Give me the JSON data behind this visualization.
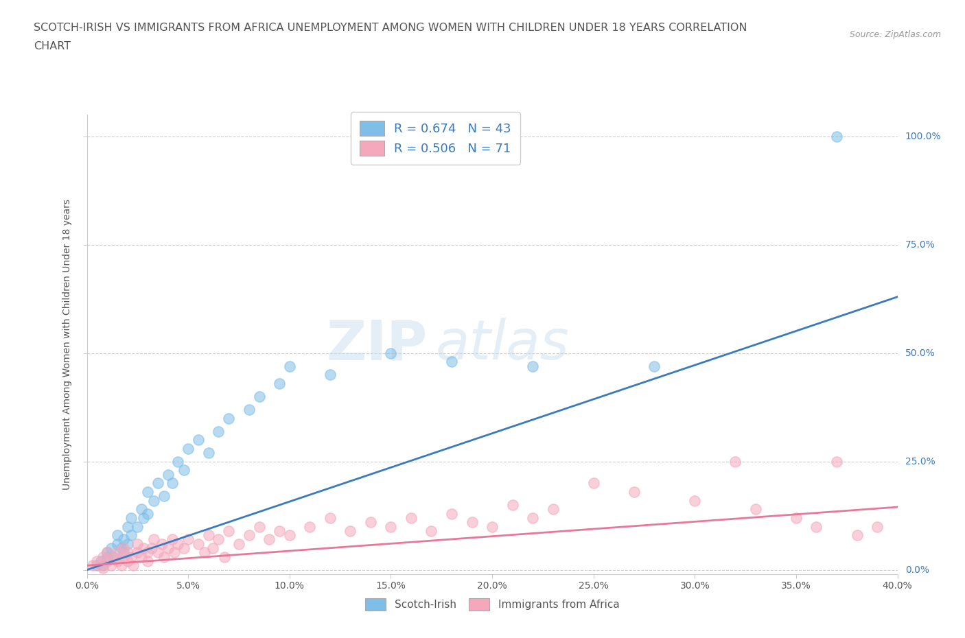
{
  "title_line1": "SCOTCH-IRISH VS IMMIGRANTS FROM AFRICA UNEMPLOYMENT AMONG WOMEN WITH CHILDREN UNDER 18 YEARS CORRELATION",
  "title_line2": "CHART",
  "source_text": "Source: ZipAtlas.com",
  "xlim": [
    0.0,
    0.4
  ],
  "ylim": [
    -0.01,
    1.05
  ],
  "ylabel": "Unemployment Among Women with Children Under 18 years",
  "watermark_zip": "ZIP",
  "watermark_atlas": "atlas",
  "blue_R": 0.674,
  "blue_N": 43,
  "pink_R": 0.506,
  "pink_N": 71,
  "blue_color": "#7fbee8",
  "pink_color": "#f5a8bc",
  "blue_line_color": "#3a7abf",
  "pink_line_color": "#e8789a",
  "legend_text_color": "#3a7abf",
  "background_color": "#ffffff",
  "grid_color": "#cccccc",
  "title_color": "#555555",
  "blue_scatter_x": [
    0.005,
    0.007,
    0.008,
    0.01,
    0.01,
    0.012,
    0.013,
    0.015,
    0.015,
    0.017,
    0.018,
    0.018,
    0.02,
    0.02,
    0.022,
    0.022,
    0.025,
    0.027,
    0.028,
    0.03,
    0.03,
    0.033,
    0.035,
    0.038,
    0.04,
    0.042,
    0.045,
    0.048,
    0.05,
    0.055,
    0.06,
    0.065,
    0.07,
    0.08,
    0.085,
    0.095,
    0.1,
    0.12,
    0.15,
    0.18,
    0.22,
    0.28,
    0.37
  ],
  "blue_scatter_y": [
    0.01,
    0.02,
    0.01,
    0.03,
    0.04,
    0.05,
    0.03,
    0.06,
    0.08,
    0.05,
    0.04,
    0.07,
    0.06,
    0.1,
    0.08,
    0.12,
    0.1,
    0.14,
    0.12,
    0.13,
    0.18,
    0.16,
    0.2,
    0.17,
    0.22,
    0.2,
    0.25,
    0.23,
    0.28,
    0.3,
    0.27,
    0.32,
    0.35,
    0.37,
    0.4,
    0.43,
    0.47,
    0.45,
    0.5,
    0.48,
    0.47,
    0.47,
    1.0
  ],
  "pink_scatter_x": [
    0.003,
    0.005,
    0.007,
    0.008,
    0.008,
    0.01,
    0.01,
    0.012,
    0.013,
    0.015,
    0.015,
    0.017,
    0.018,
    0.018,
    0.02,
    0.02,
    0.022,
    0.023,
    0.025,
    0.025,
    0.027,
    0.028,
    0.03,
    0.03,
    0.032,
    0.033,
    0.035,
    0.037,
    0.038,
    0.04,
    0.042,
    0.043,
    0.045,
    0.048,
    0.05,
    0.055,
    0.058,
    0.06,
    0.062,
    0.065,
    0.068,
    0.07,
    0.075,
    0.08,
    0.085,
    0.09,
    0.095,
    0.1,
    0.11,
    0.12,
    0.13,
    0.14,
    0.15,
    0.16,
    0.17,
    0.18,
    0.19,
    0.2,
    0.21,
    0.22,
    0.23,
    0.25,
    0.27,
    0.3,
    0.32,
    0.33,
    0.35,
    0.36,
    0.37,
    0.38,
    0.39
  ],
  "pink_scatter_y": [
    0.01,
    0.02,
    0.01,
    0.03,
    0.005,
    0.02,
    0.04,
    0.01,
    0.03,
    0.02,
    0.04,
    0.01,
    0.03,
    0.05,
    0.02,
    0.04,
    0.03,
    0.01,
    0.04,
    0.06,
    0.03,
    0.05,
    0.04,
    0.02,
    0.05,
    0.07,
    0.04,
    0.06,
    0.03,
    0.05,
    0.07,
    0.04,
    0.06,
    0.05,
    0.07,
    0.06,
    0.04,
    0.08,
    0.05,
    0.07,
    0.03,
    0.09,
    0.06,
    0.08,
    0.1,
    0.07,
    0.09,
    0.08,
    0.1,
    0.12,
    0.09,
    0.11,
    0.1,
    0.12,
    0.09,
    0.13,
    0.11,
    0.1,
    0.15,
    0.12,
    0.14,
    0.2,
    0.18,
    0.16,
    0.25,
    0.14,
    0.12,
    0.1,
    0.25,
    0.08,
    0.1
  ],
  "blue_trend_x": [
    0.0,
    0.4
  ],
  "blue_trend_y": [
    0.0,
    0.63
  ],
  "pink_trend_x": [
    0.0,
    0.4
  ],
  "pink_trend_y": [
    0.01,
    0.145
  ]
}
